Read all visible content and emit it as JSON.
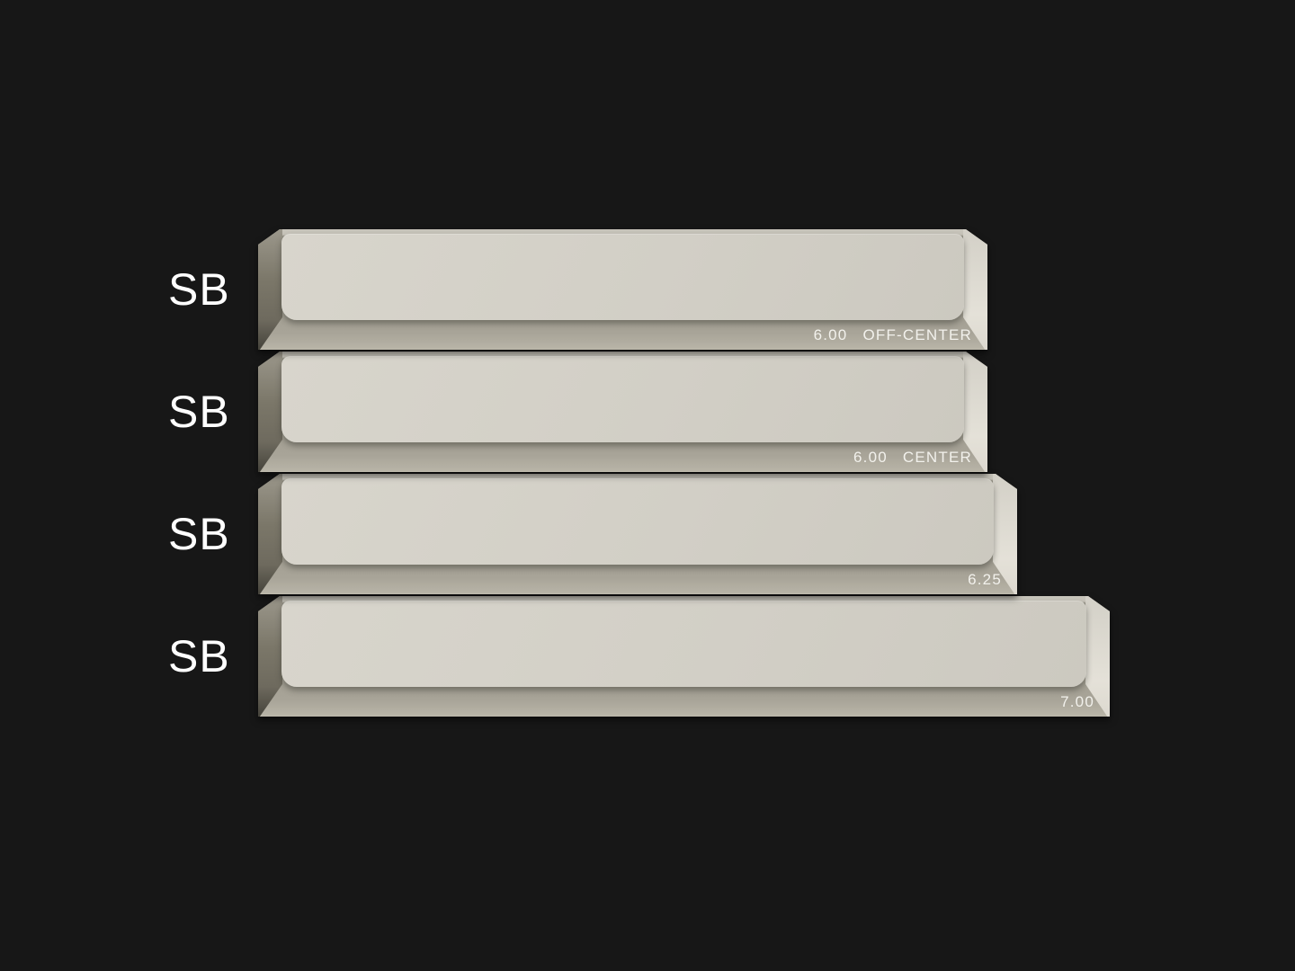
{
  "colors": {
    "bg": "#171717",
    "cap-top": "#d2cfc6",
    "cap-top-hi": "#d8d5cc",
    "cap-top-lo": "#ccc9c0",
    "cap-edge": "#c7c4ba",
    "cap-front": "#a29e92",
    "cap-front-dark": "#8e8b7f",
    "cap-front-light": "#b8b4a7",
    "cap-left": "#7b7769",
    "cap-left-dark": "#45433b",
    "cap-right": "#e4e1d8",
    "text": "#f2f1ec",
    "label": "#ffffff"
  },
  "rows": [
    {
      "label": "SB",
      "size": "6.00",
      "variant": "OFF-CENTER"
    },
    {
      "label": "SB",
      "size": "6.00",
      "variant": "CENTER"
    },
    {
      "label": "SB",
      "size": "6.25",
      "variant": ""
    },
    {
      "label": "SB",
      "size": "7.00",
      "variant": ""
    }
  ]
}
